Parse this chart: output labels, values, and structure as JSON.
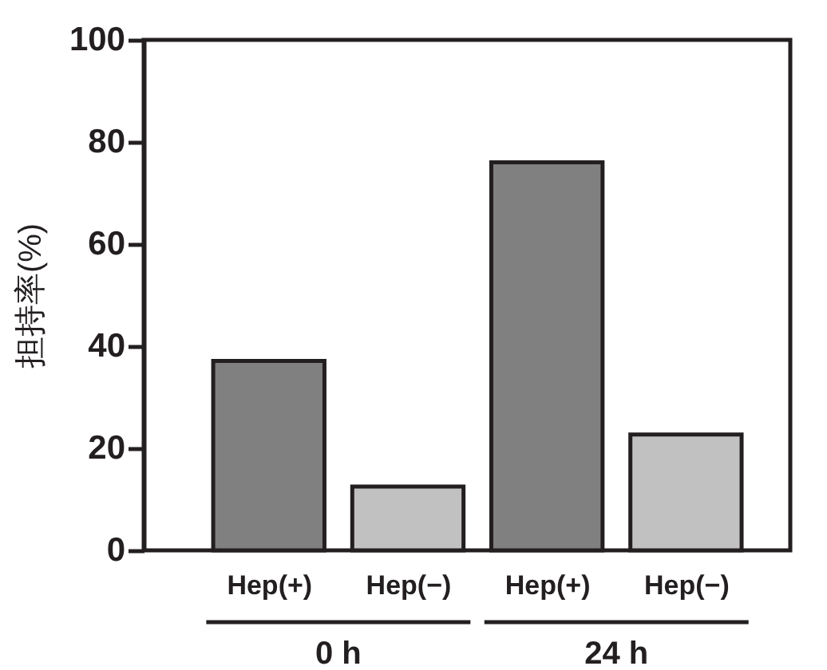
{
  "chart_data": {
    "type": "bar",
    "ylabel": "担持率(%)",
    "categories": [
      "Hep(+)",
      "Hep(−)",
      "Hep(+)",
      "Hep(−)"
    ],
    "values": [
      37.1,
      12.5,
      76.0,
      22.7
    ],
    "colors": [
      "#808080",
      "#c0c1c0",
      "#808080",
      "#c0c1c0"
    ],
    "annotations": [
      "0 h",
      "24 h"
    ],
    "ylim": [
      0,
      100
    ],
    "yticks": [
      0,
      20,
      40,
      60,
      80,
      100
    ],
    "grid": false
  }
}
